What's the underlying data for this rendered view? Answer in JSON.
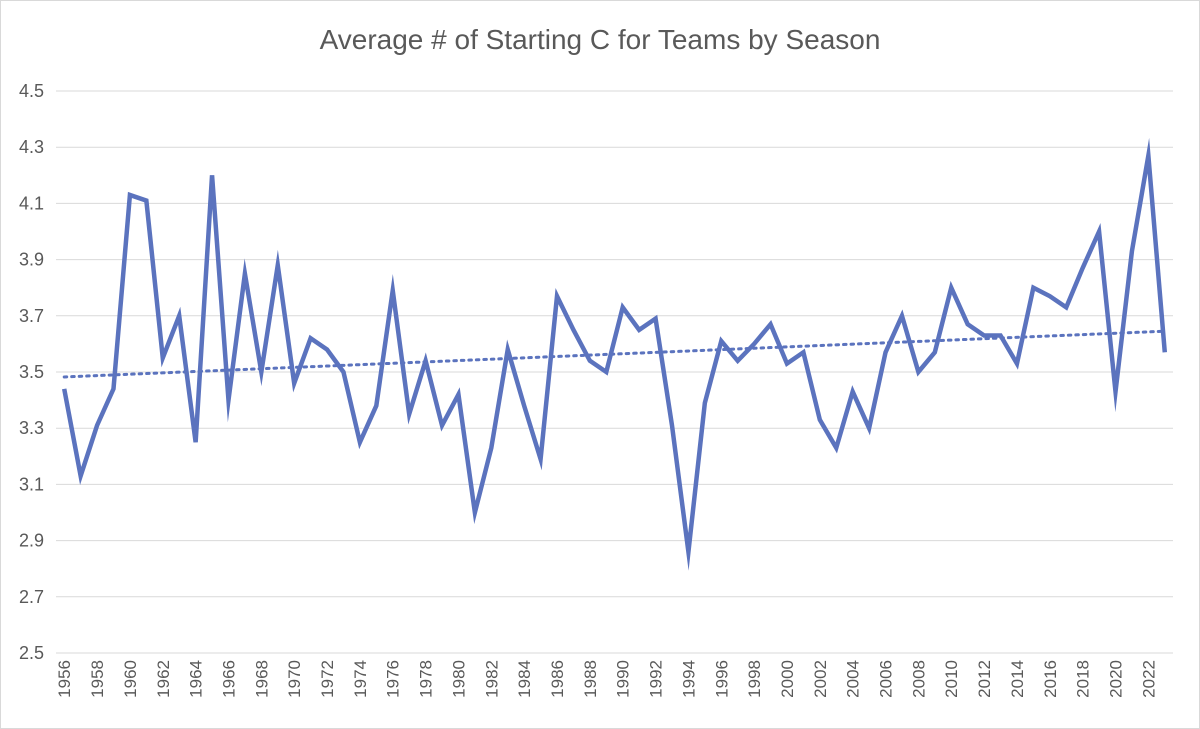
{
  "chart_data": {
    "type": "line",
    "title": "Average # of Starting C for Teams by Season",
    "xlabel": "",
    "ylabel": "",
    "ylim": [
      2.5,
      4.5
    ],
    "yticks": [
      "2.5",
      "2.7",
      "2.9",
      "3.1",
      "3.3",
      "3.5",
      "3.7",
      "3.9",
      "4.1",
      "4.3",
      "4.5"
    ],
    "x": [
      1956,
      1957,
      1958,
      1959,
      1960,
      1961,
      1962,
      1963,
      1964,
      1965,
      1966,
      1967,
      1968,
      1969,
      1970,
      1971,
      1972,
      1973,
      1974,
      1975,
      1976,
      1977,
      1978,
      1979,
      1980,
      1981,
      1982,
      1983,
      1984,
      1985,
      1986,
      1987,
      1988,
      1989,
      1990,
      1991,
      1992,
      1993,
      1994,
      1995,
      1996,
      1997,
      1998,
      1999,
      2000,
      2001,
      2002,
      2003,
      2004,
      2005,
      2006,
      2007,
      2008,
      2009,
      2010,
      2011,
      2012,
      2013,
      2014,
      2015,
      2016,
      2017,
      2018,
      2019,
      2020,
      2021,
      2022,
      2023
    ],
    "xtick_labels": [
      "1956",
      "1958",
      "1960",
      "1962",
      "1964",
      "1966",
      "1968",
      "1970",
      "1972",
      "1974",
      "1976",
      "1978",
      "1980",
      "1982",
      "1984",
      "1986",
      "1988",
      "1990",
      "1992",
      "1994",
      "1996",
      "1998",
      "2000",
      "2002",
      "2004",
      "2006",
      "2008",
      "2010",
      "2012",
      "2014",
      "2016",
      "2018",
      "2020",
      "2022"
    ],
    "grid": true,
    "series": [
      {
        "color": "#5B73BE",
        "values": [
          3.44,
          3.13,
          3.31,
          3.44,
          4.13,
          4.11,
          3.55,
          3.7,
          3.25,
          4.2,
          3.4,
          3.85,
          3.5,
          3.88,
          3.46,
          3.62,
          3.58,
          3.5,
          3.25,
          3.38,
          3.79,
          3.35,
          3.54,
          3.31,
          3.42,
          3.0,
          3.23,
          3.58,
          3.38,
          3.19,
          3.77,
          3.65,
          3.54,
          3.5,
          3.73,
          3.65,
          3.69,
          3.31,
          2.86,
          3.39,
          3.61,
          3.54,
          3.6,
          3.67,
          3.53,
          3.57,
          3.33,
          3.23,
          3.43,
          3.3,
          3.57,
          3.7,
          3.5,
          3.57,
          3.8,
          3.67,
          3.63,
          3.63,
          3.53,
          3.8,
          3.77,
          3.73,
          3.87,
          4.0,
          3.43,
          3.93,
          4.27,
          3.57
        ]
      }
    ],
    "trendline": {
      "type": "linear",
      "style": "dotted",
      "color": "#5B73BE"
    }
  }
}
